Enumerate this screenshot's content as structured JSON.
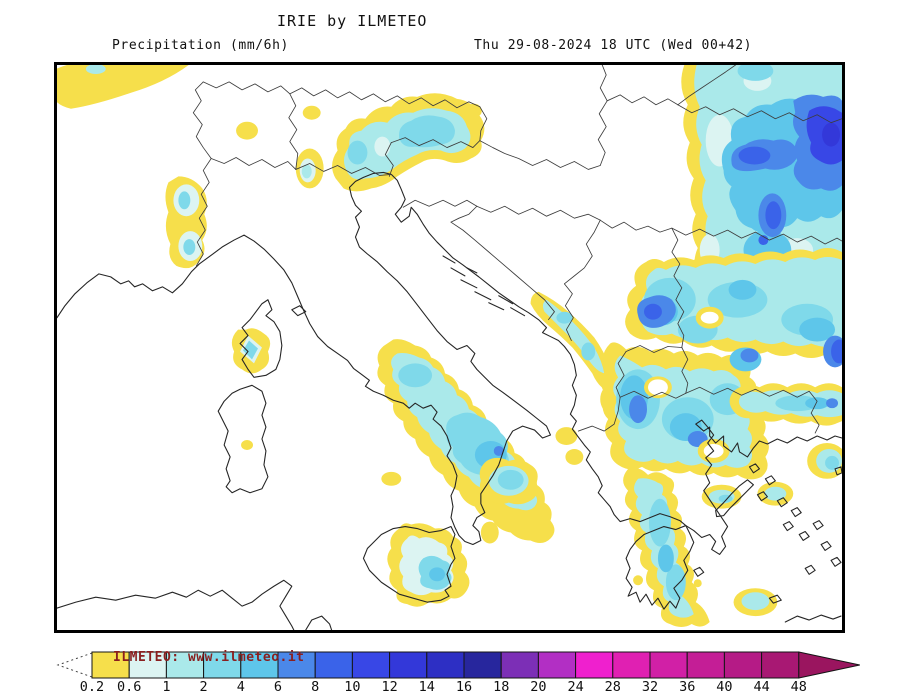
{
  "header": {
    "title": "IRIE by ILMETEO",
    "subtitle_left": "Precipitation (mm/6h)",
    "subtitle_right": "Thu 29-08-2024 18 UTC (Wed 00+42)"
  },
  "legend": {
    "watermark": "ILMETEO: www.ilmeteo.it",
    "watermark_color": "#8a1f1f",
    "tick_labels": [
      "0.2",
      "0.6",
      "1",
      "2",
      "4",
      "6",
      "8",
      "10",
      "12",
      "14",
      "16",
      "18",
      "20",
      "24",
      "28",
      "32",
      "36",
      "40",
      "44",
      "48"
    ],
    "cell_colors": [
      "#F6DF4B",
      "#DCF4F2",
      "#AAE9EA",
      "#7FD9EA",
      "#5EC6EA",
      "#4B88E9",
      "#3A63E9",
      "#3847E6",
      "#3338D9",
      "#2D2FC4",
      "#27269D",
      "#7C2FB6",
      "#B22FC4",
      "#EF20CE",
      "#E020B2",
      "#D120A6",
      "#C41E96",
      "#B51B86",
      "#A81873"
    ],
    "arrow_color": "#9A155F",
    "units": "mm/6h"
  }
}
